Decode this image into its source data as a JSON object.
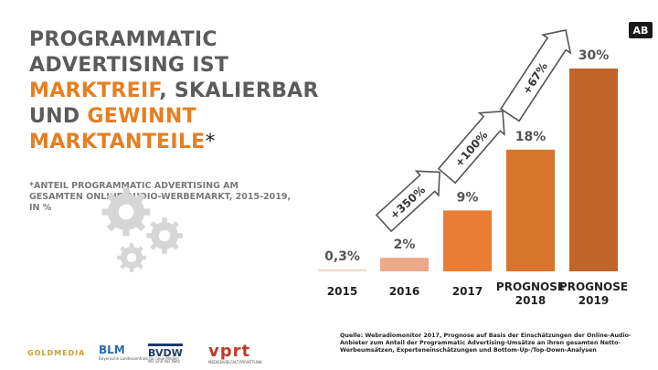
{
  "badge": "AB",
  "headline": {
    "line1": "PROGRAMMATIC",
    "line2": "ADVERTISING IST",
    "line3_hl": "MARKTREIF",
    "line3_rest": ", SKALIERBAR",
    "line4_a": "UND ",
    "line4_hl": "GEWINNT",
    "line5_hl": "MARKTANTEILE",
    "line5_star": "*"
  },
  "note": "*ANTEIL PROGRAMMATIC ADVERTISING AM GESAMTEN ONLINE-AUDIO-WERBEMARKT, 2015-2019, IN %",
  "colors": {
    "accent": "#e67e22",
    "bar_2015": "#f4d8cc",
    "bar_2016": "#eaa98a",
    "bar_2017": "#ea7d34",
    "bar_2018": "#d9742b",
    "bar_2019": "#c06428",
    "gear": "#d6d6d6"
  },
  "chart_data": {
    "type": "bar",
    "categories": [
      "2015",
      "2016",
      "2017",
      "PROGNOSE 2018",
      "PROGNOSE 2019"
    ],
    "values": [
      0.3,
      2,
      9,
      18,
      30
    ],
    "value_labels": [
      "0,3%",
      "2%",
      "9%",
      "18%",
      "30%"
    ],
    "growth_arrows": [
      {
        "label": "+350%",
        "from": "2016",
        "to": "2017"
      },
      {
        "label": "+100%",
        "from": "2017",
        "to": "PROGNOSE 2018"
      },
      {
        "label": "+67%",
        "from": "PROGNOSE 2018",
        "to": "PROGNOSE 2019"
      }
    ],
    "title": "",
    "xlabel": "",
    "ylabel": "",
    "grid": false
  },
  "source": "Quelle: Webradiomonitor 2017, Prognose auf Basis der Einschätzungen der Online-Audio-Anbieter zum Anteil der Programmatic Advertising-Umsätze an ihren gesamten Netto-Werbeumsätzen, Experteneinschätzungen und Bottom-Up-/Top-Down-Analysen",
  "logos": {
    "goldmedia": "GOLDMEDIA",
    "blm": "BLM",
    "blm_sub": "Bayerische Landeszentrale für neue Medien",
    "bvdw": "BVDW",
    "bvdw_sub": "Wir sind das Netz",
    "vprt": "vprt",
    "vprt_sub": "MEDIENVIELFALT.PRIVATFUNK"
  }
}
